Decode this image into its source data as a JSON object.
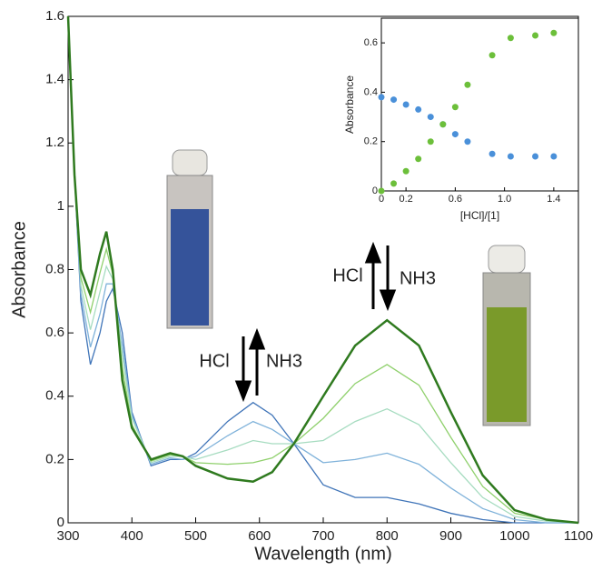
{
  "chart_data": [
    {
      "type": "line",
      "x_label": "Wavelength (nm)",
      "y_label": "Absorbance",
      "x": [
        300,
        310,
        320,
        335,
        350,
        360,
        370,
        385,
        400,
        430,
        460,
        480,
        500,
        550,
        590,
        620,
        654,
        700,
        750,
        800,
        850,
        900,
        950,
        1000,
        1050,
        1100
      ],
      "xlim": [
        300,
        1100
      ],
      "xticks": [
        300,
        400,
        500,
        600,
        700,
        800,
        900,
        1000,
        1100
      ],
      "ylim": [
        0,
        1.6
      ],
      "yticks": [
        0,
        0.2,
        0.4,
        0.6,
        0.8,
        1,
        1.2,
        1.4,
        1.6
      ],
      "annotations": [
        "HCl",
        "NH3",
        "HCl",
        "NH3"
      ],
      "series": [
        {
          "color": "#3f74b8",
          "values": [
            1.6,
            1.1,
            0.7,
            0.5,
            0.6,
            0.7,
            0.74,
            0.6,
            0.35,
            0.18,
            0.2,
            0.2,
            0.22,
            0.32,
            0.38,
            0.34,
            0.25,
            0.12,
            0.08,
            0.08,
            0.06,
            0.03,
            0.01,
            0,
            0,
            0
          ]
        },
        {
          "color": "#7fb2da",
          "values": [
            1.6,
            1.1,
            0.725,
            0.555,
            0.66,
            0.755,
            0.755,
            0.56,
            0.34,
            0.185,
            0.205,
            0.2,
            0.21,
            0.275,
            0.32,
            0.295,
            0.25,
            0.19,
            0.2,
            0.22,
            0.185,
            0.11,
            0.045,
            0.01,
            0,
            0
          ]
        },
        {
          "color": "#a6dcc0",
          "values": [
            1.6,
            1.1,
            0.75,
            0.61,
            0.73,
            0.81,
            0.77,
            0.53,
            0.33,
            0.19,
            0.21,
            0.21,
            0.2,
            0.23,
            0.26,
            0.25,
            0.25,
            0.26,
            0.32,
            0.36,
            0.31,
            0.19,
            0.08,
            0.02,
            0.005,
            0
          ]
        },
        {
          "color": "#8fd06c",
          "values": [
            1.6,
            1.1,
            0.775,
            0.665,
            0.79,
            0.865,
            0.785,
            0.49,
            0.31,
            0.195,
            0.215,
            0.21,
            0.19,
            0.185,
            0.19,
            0.205,
            0.25,
            0.33,
            0.44,
            0.5,
            0.435,
            0.27,
            0.115,
            0.03,
            0.01,
            0
          ]
        },
        {
          "color": "#2f7a1f",
          "values": [
            1.6,
            1.1,
            0.8,
            0.72,
            0.85,
            0.92,
            0.8,
            0.45,
            0.3,
            0.2,
            0.22,
            0.21,
            0.18,
            0.14,
            0.13,
            0.16,
            0.25,
            0.4,
            0.56,
            0.64,
            0.56,
            0.35,
            0.15,
            0.04,
            0.01,
            0
          ]
        }
      ]
    },
    {
      "type": "scatter",
      "x_label": "[HCl]/[1]",
      "y_label": "Absorbance",
      "x": [
        0,
        0.1,
        0.2,
        0.3,
        0.4,
        0.5,
        0.6,
        0.7,
        0.9,
        1.05,
        1.25,
        1.4
      ],
      "xlim": [
        0,
        1.6
      ],
      "xticks": [
        0,
        0.2,
        0.6,
        {
          "value": 1,
          "label": "1.0"
        },
        1.4
      ],
      "ylim": [
        0,
        0.7
      ],
      "yticks": [
        0,
        0.2,
        0.4,
        0.6
      ],
      "series": [
        {
          "color": "#4a90d9",
          "values": [
            0.38,
            0.37,
            0.35,
            0.33,
            0.3,
            0.27,
            0.23,
            0.2,
            0.15,
            0.14,
            0.14,
            0.14
          ]
        },
        {
          "color": "#6cbf3a",
          "values": [
            0,
            0.03,
            0.08,
            0.13,
            0.2,
            0.27,
            0.34,
            0.43,
            0.55,
            0.62,
            0.63,
            0.64
          ]
        }
      ]
    }
  ]
}
